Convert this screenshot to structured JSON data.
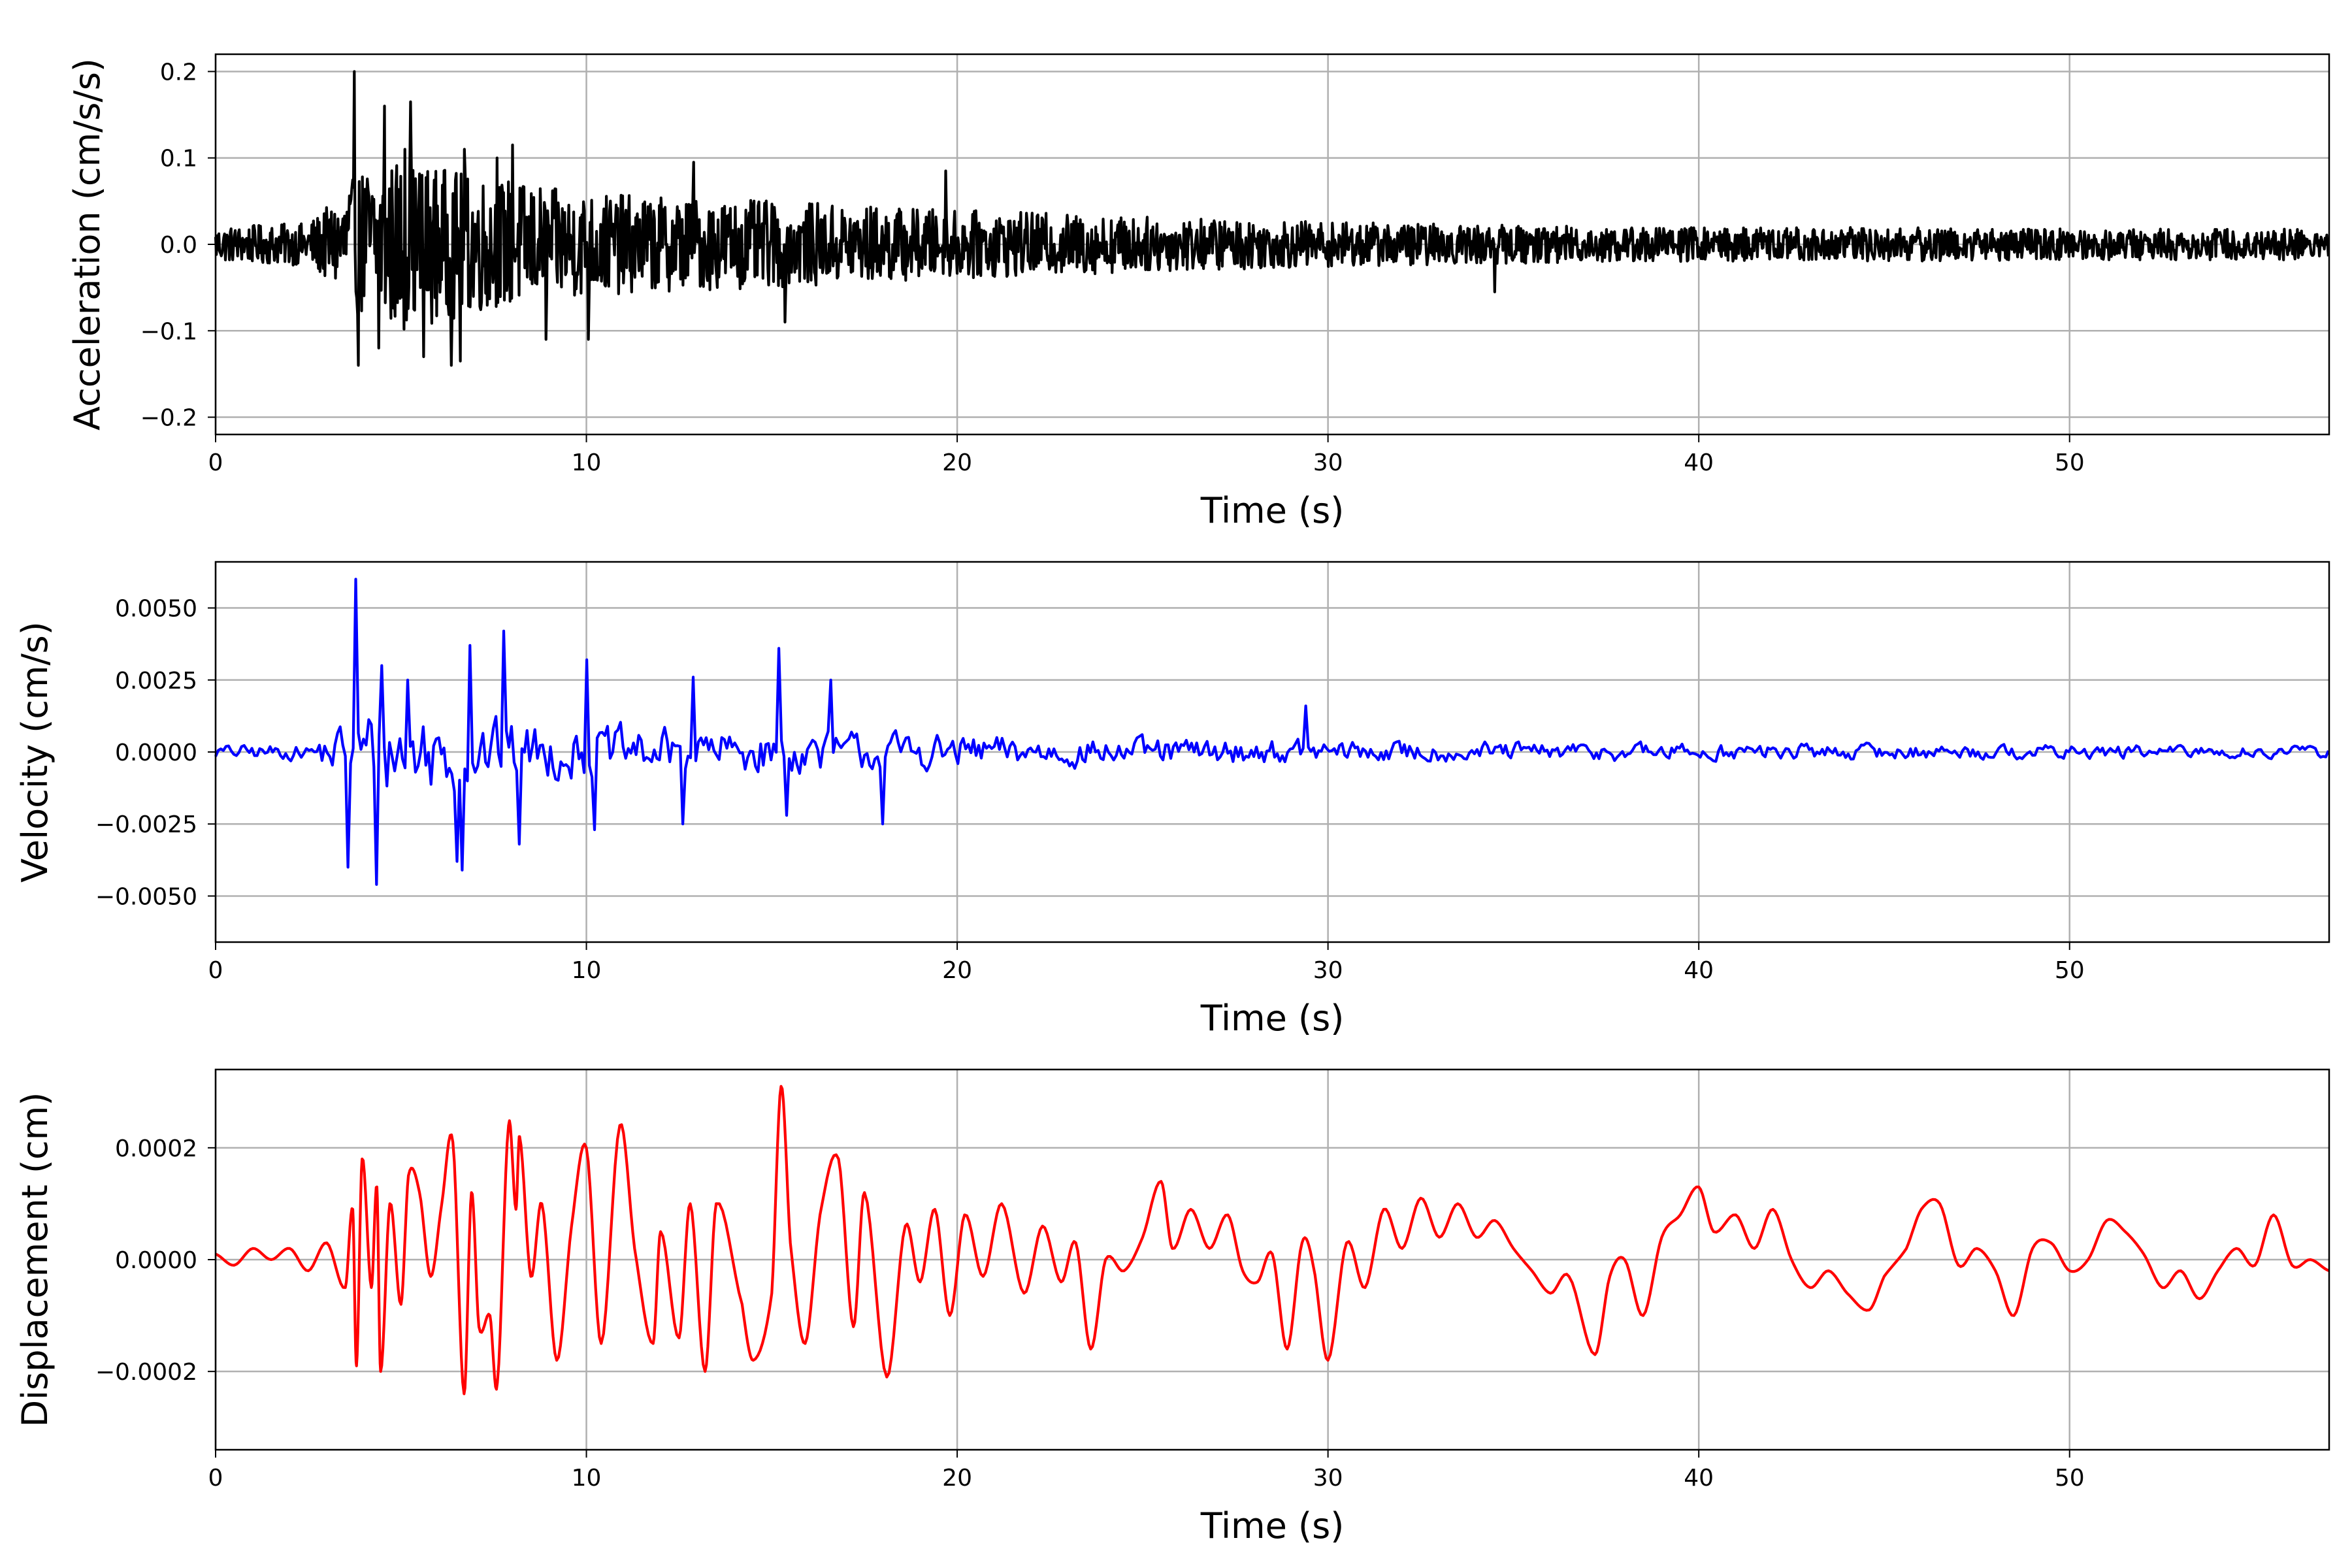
{
  "chart_data": [
    {
      "type": "line",
      "xlabel": "Time (s)",
      "ylabel": "Acceleration (cm/s/s)",
      "xlim": [
        0,
        57
      ],
      "ylim": [
        -0.22,
        0.22
      ],
      "xticks": [
        0,
        10,
        20,
        30,
        40,
        50
      ],
      "yticks": [
        -0.2,
        -0.1,
        0.0,
        0.1,
        0.2
      ],
      "ytick_labels": [
        "−0.2",
        "−0.1",
        "0.0",
        "0.1",
        "0.2"
      ],
      "grid": true,
      "color": "#000000",
      "series": [
        {
          "envelope": {
            "t": [
              0,
              2.5,
              3.2,
              4.0,
              5.0,
              6.0,
              7.0,
              8.0,
              9.0,
              10.0,
              12.0,
              15.0,
              20.0,
              25.0,
              30.0,
              35.0,
              40.0,
              45.0,
              50.0,
              57.0
            ],
            "amp": [
              0.02,
              0.025,
              0.05,
              0.09,
              0.1,
              0.09,
              0.08,
              0.075,
              0.065,
              0.06,
              0.055,
              0.05,
              0.04,
              0.032,
              0.026,
              0.022,
              0.02,
              0.02,
              0.018,
              0.018
            ]
          },
          "peaks": [
            {
              "t": 3.75,
              "v": 0.2
            },
            {
              "t": 3.85,
              "v": -0.14
            },
            {
              "t": 4.4,
              "v": -0.12
            },
            {
              "t": 4.55,
              "v": 0.16
            },
            {
              "t": 5.1,
              "v": 0.11
            },
            {
              "t": 5.25,
              "v": 0.165
            },
            {
              "t": 5.6,
              "v": -0.13
            },
            {
              "t": 6.35,
              "v": -0.14
            },
            {
              "t": 6.6,
              "v": -0.135
            },
            {
              "t": 6.7,
              "v": 0.11
            },
            {
              "t": 7.6,
              "v": 0.1
            },
            {
              "t": 8.0,
              "v": 0.115
            },
            {
              "t": 8.9,
              "v": -0.11
            },
            {
              "t": 10.05,
              "v": -0.11
            },
            {
              "t": 12.9,
              "v": 0.095
            },
            {
              "t": 15.35,
              "v": -0.09
            },
            {
              "t": 19.7,
              "v": 0.085
            },
            {
              "t": 34.5,
              "v": -0.055
            }
          ]
        }
      ]
    },
    {
      "type": "line",
      "xlabel": "Time (s)",
      "ylabel": "Velocity (cm/s)",
      "xlim": [
        0,
        57
      ],
      "ylim": [
        -0.0066,
        0.0066
      ],
      "xticks": [
        0,
        10,
        20,
        30,
        40,
        50
      ],
      "yticks": [
        -0.005,
        -0.0025,
        0.0,
        0.0025,
        0.005
      ],
      "ytick_labels": [
        "−0.0050",
        "−0.0025",
        "0.0000",
        "0.0025",
        "0.0050"
      ],
      "grid": true,
      "color": "#0000ff",
      "series": [
        {
          "envelope": {
            "t": [
              0,
              2.5,
              3.2,
              4.0,
              5.0,
              6.0,
              7.0,
              8.0,
              9.0,
              10.0,
              12.0,
              15.0,
              18.0,
              20.0,
              25.0,
              30.0,
              35.0,
              40.0,
              45.0,
              50.0,
              57.0
            ],
            "amp": [
              0.00035,
              0.0004,
              0.0012,
              0.0022,
              0.0024,
              0.0022,
              0.0018,
              0.0017,
              0.0014,
              0.0013,
              0.0012,
              0.0011,
              0.001,
              0.00085,
              0.0007,
              0.0006,
              0.0005,
              0.00045,
              0.0004,
              0.00035,
              0.0003
            ]
          },
          "peaks": [
            {
              "t": 3.6,
              "v": -0.004
            },
            {
              "t": 3.78,
              "v": 0.006
            },
            {
              "t": 4.35,
              "v": -0.0046
            },
            {
              "t": 4.5,
              "v": 0.003
            },
            {
              "t": 5.2,
              "v": 0.0025
            },
            {
              "t": 6.5,
              "v": -0.0038
            },
            {
              "t": 6.65,
              "v": -0.0041
            },
            {
              "t": 6.85,
              "v": 0.0037
            },
            {
              "t": 7.8,
              "v": 0.0042
            },
            {
              "t": 8.2,
              "v": -0.0032
            },
            {
              "t": 10.0,
              "v": 0.0032
            },
            {
              "t": 10.2,
              "v": -0.0027
            },
            {
              "t": 12.9,
              "v": 0.0026
            },
            {
              "t": 12.6,
              "v": -0.0025
            },
            {
              "t": 15.2,
              "v": 0.0036
            },
            {
              "t": 15.4,
              "v": -0.0022
            },
            {
              "t": 16.6,
              "v": 0.0025
            },
            {
              "t": 18.0,
              "v": -0.0025
            },
            {
              "t": 29.4,
              "v": 0.0016
            }
          ]
        }
      ]
    },
    {
      "type": "line",
      "xlabel": "Time (s)",
      "ylabel": "Displacement (cm)",
      "xlim": [
        0,
        57
      ],
      "ylim": [
        -0.00034,
        0.00034
      ],
      "xticks": [
        0,
        10,
        20,
        30,
        40,
        50
      ],
      "yticks": [
        -0.0002,
        0.0,
        0.0002
      ],
      "ytick_labels": [
        "−0.0002",
        "0.0000",
        "0.0002"
      ],
      "grid": true,
      "color": "#ff0000",
      "series": [
        {
          "knots": [
            [
              0,
              1e-05
            ],
            [
              0.5,
              -1e-05
            ],
            [
              1.0,
              2e-05
            ],
            [
              1.5,
              0.0
            ],
            [
              2.0,
              2e-05
            ],
            [
              2.5,
              -2e-05
            ],
            [
              3.0,
              3e-05
            ],
            [
              3.5,
              -5e-05
            ],
            [
              3.7,
              9e-05
            ],
            [
              3.8,
              -0.00019
            ],
            [
              3.95,
              0.00018
            ],
            [
              4.2,
              -5e-05
            ],
            [
              4.35,
              0.00013
            ],
            [
              4.45,
              -0.0002
            ],
            [
              4.7,
              0.0001
            ],
            [
              5.0,
              -8e-05
            ],
            [
              5.2,
              0.00015
            ],
            [
              5.5,
              0.00012
            ],
            [
              5.8,
              -3e-05
            ],
            [
              6.1,
              0.0001
            ],
            [
              6.4,
              0.00021
            ],
            [
              6.7,
              -0.00024
            ],
            [
              6.9,
              0.00012
            ],
            [
              7.1,
              -0.00012
            ],
            [
              7.4,
              -0.0001
            ],
            [
              7.6,
              -0.00022
            ],
            [
              7.9,
              0.00024
            ],
            [
              8.1,
              9e-05
            ],
            [
              8.2,
              0.00022
            ],
            [
              8.5,
              -3e-05
            ],
            [
              8.8,
              0.0001
            ],
            [
              9.2,
              -0.00018
            ],
            [
              9.6,
              6e-05
            ],
            [
              10.0,
              0.0002
            ],
            [
              10.4,
              -0.00015
            ],
            [
              10.9,
              0.00024
            ],
            [
              11.3,
              2e-05
            ],
            [
              11.8,
              -0.00015
            ],
            [
              12.0,
              5e-05
            ],
            [
              12.5,
              -0.00014
            ],
            [
              12.8,
              0.0001
            ],
            [
              13.2,
              -0.0002
            ],
            [
              13.5,
              0.0001
            ],
            [
              14.2,
              -8e-05
            ],
            [
              14.5,
              -0.00018
            ],
            [
              15.0,
              -6e-05
            ],
            [
              15.25,
              0.00031
            ],
            [
              15.5,
              3e-05
            ],
            [
              15.9,
              -0.00015
            ],
            [
              16.3,
              8e-05
            ],
            [
              16.8,
              0.00018
            ],
            [
              17.2,
              -0.00012
            ],
            [
              17.5,
              0.00012
            ],
            [
              18.1,
              -0.00021
            ],
            [
              18.6,
              6e-05
            ],
            [
              19.0,
              -4e-05
            ],
            [
              19.4,
              9e-05
            ],
            [
              19.8,
              -0.0001
            ],
            [
              20.2,
              8e-05
            ],
            [
              20.7,
              -3e-05
            ],
            [
              21.2,
              0.0001
            ],
            [
              21.8,
              -6e-05
            ],
            [
              22.3,
              6e-05
            ],
            [
              22.8,
              -4e-05
            ],
            [
              23.2,
              3e-05
            ],
            [
              23.6,
              -0.00016
            ],
            [
              24.0,
              0.0
            ],
            [
              24.5,
              -2e-05
            ],
            [
              25.0,
              4e-05
            ],
            [
              25.5,
              0.00014
            ],
            [
              25.8,
              2e-05
            ],
            [
              26.3,
              9e-05
            ],
            [
              26.8,
              2e-05
            ],
            [
              27.3,
              8e-05
            ],
            [
              27.7,
              -2e-05
            ],
            [
              28.1,
              -4e-05
            ],
            [
              28.5,
              1e-05
            ],
            [
              28.9,
              -0.00016
            ],
            [
              29.3,
              3e-05
            ],
            [
              29.6,
              -1e-05
            ],
            [
              30.0,
              -0.00018
            ],
            [
              30.5,
              3e-05
            ],
            [
              31.0,
              -5e-05
            ],
            [
              31.5,
              9e-05
            ],
            [
              32.0,
              2e-05
            ],
            [
              32.5,
              0.00011
            ],
            [
              33.0,
              4e-05
            ],
            [
              33.5,
              0.0001
            ],
            [
              34.0,
              4e-05
            ],
            [
              34.5,
              7e-05
            ],
            [
              35.0,
              2e-05
            ],
            [
              35.5,
              -2e-05
            ],
            [
              36.0,
              -6e-05
            ],
            [
              36.5,
              -3e-05
            ],
            [
              37.2,
              -0.00017
            ],
            [
              37.6,
              -3e-05
            ],
            [
              38.0,
              0.0
            ],
            [
              38.5,
              -0.0001
            ],
            [
              39.0,
              4e-05
            ],
            [
              39.5,
              8e-05
            ],
            [
              40.0,
              0.00013
            ],
            [
              40.4,
              5e-05
            ],
            [
              41.0,
              8e-05
            ],
            [
              41.5,
              2e-05
            ],
            [
              42.0,
              9e-05
            ],
            [
              42.5,
              0.0
            ],
            [
              43.0,
              -5e-05
            ],
            [
              43.5,
              -2e-05
            ],
            [
              44.0,
              -6e-05
            ],
            [
              44.6,
              -9e-05
            ],
            [
              45.0,
              -3e-05
            ],
            [
              45.6,
              2e-05
            ],
            [
              46.0,
              9e-05
            ],
            [
              46.5,
              0.0001
            ],
            [
              47.0,
              -1e-05
            ],
            [
              47.5,
              2e-05
            ],
            [
              48.0,
              -2e-05
            ],
            [
              48.5,
              -0.0001
            ],
            [
              49.0,
              2e-05
            ],
            [
              49.5,
              3e-05
            ],
            [
              50.0,
              -2e-05
            ],
            [
              50.5,
              0.0
            ],
            [
              51.0,
              7e-05
            ],
            [
              51.5,
              5e-05
            ],
            [
              52.0,
              1e-05
            ],
            [
              52.5,
              -5e-05
            ],
            [
              53.0,
              -2e-05
            ],
            [
              53.5,
              -7e-05
            ],
            [
              54.0,
              -2e-05
            ],
            [
              54.5,
              2e-05
            ],
            [
              55.0,
              -1e-05
            ],
            [
              55.5,
              8e-05
            ],
            [
              56.0,
              -1e-05
            ],
            [
              56.5,
              0.0
            ],
            [
              57.0,
              -2e-05
            ]
          ]
        }
      ]
    }
  ]
}
